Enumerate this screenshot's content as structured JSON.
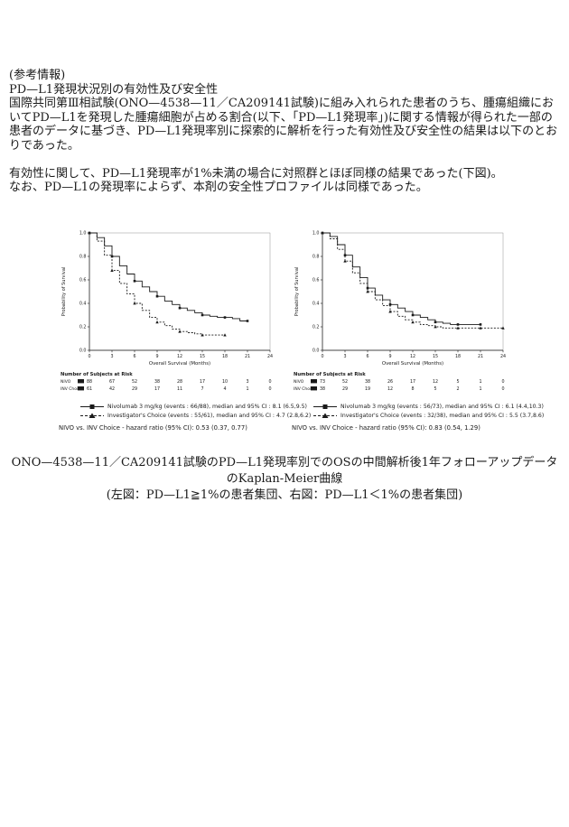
{
  "doc": {
    "ref_heading": "(参考情報)",
    "section_heading": "PD—L1発現状況別の有効性及び安全性",
    "paragraph1": "国際共同第Ⅲ相試験(ONO—4538—11／CA209141試験)に組み入れられた患者のうち、腫瘍組織においてPD—L1を発現した腫瘍細胞が占める割合(以下、「PD—L1発現率」)に関する情報が得られた一部の患者のデータに基づき、PD—L1発現率別に探索的に解析を行った有効性及び安全性の結果は以下のとおりであった。",
    "paragraph2": "有効性に関して、PD—L1発現率が1%未満の場合に対照群とほぼ同様の結果であった(下図)。",
    "paragraph3": "なお、PD—L1の発現率によらず、本剤の安全性プロファイルは同様であった。",
    "caption_line1": "ONO—4538—11／CA209141試験のPD—L1発現率別でのOSの中間解析後1年フォローアップデータのKaplan-Meier曲線",
    "caption_line2": "(左図：PD—L1≧1%の患者集団、右図：PD—L1＜1%の患者集団)"
  },
  "colors": {
    "ink": "#1a1a1a",
    "frame": "#777777"
  },
  "chart_data": [
    {
      "type": "line",
      "subtype": "kaplan-meier",
      "title": "PD-L1 >= 1%",
      "xlabel": "Overall Survival (Months)",
      "ylabel": "Probability of Survival",
      "xlim": [
        0,
        24
      ],
      "ylim": [
        0,
        1
      ],
      "xticks": [
        0,
        3,
        6,
        9,
        12,
        15,
        18,
        21,
        24
      ],
      "yticks": [
        0.0,
        0.2,
        0.4,
        0.6,
        0.8,
        1.0
      ],
      "grid": false,
      "legend_position": "bottom",
      "series": [
        {
          "name": "Nivolumab 3 mg/kg",
          "style": "solid",
          "marker": "square",
          "x": [
            0,
            1,
            2,
            3,
            4,
            5,
            6,
            7,
            8,
            9,
            10,
            11,
            12,
            13,
            14,
            15,
            16,
            17,
            18,
            19,
            20,
            21
          ],
          "y": [
            1.0,
            0.96,
            0.89,
            0.8,
            0.72,
            0.65,
            0.59,
            0.54,
            0.5,
            0.46,
            0.42,
            0.39,
            0.36,
            0.34,
            0.32,
            0.3,
            0.29,
            0.28,
            0.28,
            0.27,
            0.25,
            0.25
          ]
        },
        {
          "name": "Investigator's Choice",
          "style": "dashed",
          "marker": "triangle",
          "x": [
            0,
            1,
            2,
            3,
            4,
            5,
            6,
            7,
            8,
            9,
            10,
            11,
            12,
            13,
            14,
            15,
            16,
            17,
            18
          ],
          "y": [
            1.0,
            0.93,
            0.81,
            0.68,
            0.57,
            0.48,
            0.4,
            0.34,
            0.28,
            0.24,
            0.21,
            0.18,
            0.16,
            0.15,
            0.14,
            0.13,
            0.13,
            0.13,
            0.13
          ]
        }
      ],
      "at_risk": {
        "title": "Number of Subjects at Risk",
        "rows": [
          {
            "label": "NIVO",
            "values": [
              88,
              67,
              52,
              38,
              28,
              17,
              10,
              3,
              0
            ]
          },
          {
            "label": "INV Choice",
            "values": [
              61,
              42,
              29,
              17,
              11,
              7,
              4,
              1,
              0
            ]
          }
        ]
      },
      "legend": [
        "Nivolumab 3 mg/kg (events : 66/88), median and 95% CI : 8.1 (6.5,9.5)",
        "Investigator's Choice (events : 55/61), median and 95% CI : 4.7 (2.8,6.2)"
      ],
      "hazard_text": "NIVO vs. INV Choice - hazard ratio (95% CI): 0.53 (0.37, 0.77)"
    },
    {
      "type": "line",
      "subtype": "kaplan-meier",
      "title": "PD-L1 < 1%",
      "xlabel": "Overall Survival (Months)",
      "ylabel": "Probability of Survival",
      "xlim": [
        0,
        24
      ],
      "ylim": [
        0,
        1
      ],
      "xticks": [
        0,
        3,
        6,
        9,
        12,
        15,
        18,
        21,
        24
      ],
      "yticks": [
        0.0,
        0.2,
        0.4,
        0.6,
        0.8,
        1.0
      ],
      "grid": false,
      "legend_position": "bottom",
      "series": [
        {
          "name": "Nivolumab 3 mg/kg",
          "style": "solid",
          "marker": "square",
          "x": [
            0,
            1,
            2,
            3,
            4,
            5,
            6,
            7,
            8,
            9,
            10,
            11,
            12,
            13,
            14,
            15,
            16,
            17,
            18,
            19,
            20,
            21
          ],
          "y": [
            1.0,
            0.97,
            0.9,
            0.81,
            0.71,
            0.62,
            0.53,
            0.47,
            0.43,
            0.39,
            0.36,
            0.33,
            0.3,
            0.28,
            0.26,
            0.24,
            0.23,
            0.22,
            0.22,
            0.22,
            0.22,
            0.22
          ]
        },
        {
          "name": "Investigator's Choice",
          "style": "dashed",
          "marker": "triangle",
          "x": [
            0,
            1,
            2,
            3,
            4,
            5,
            6,
            7,
            8,
            9,
            10,
            11,
            12,
            13,
            14,
            15,
            16,
            17,
            18,
            19,
            20,
            21,
            22,
            23,
            24
          ],
          "y": [
            1.0,
            0.95,
            0.86,
            0.76,
            0.66,
            0.57,
            0.5,
            0.43,
            0.38,
            0.33,
            0.29,
            0.26,
            0.24,
            0.22,
            0.21,
            0.2,
            0.19,
            0.19,
            0.19,
            0.19,
            0.19,
            0.19,
            0.19,
            0.19,
            0.19
          ]
        }
      ],
      "at_risk": {
        "title": "Number of Subjects at Risk",
        "rows": [
          {
            "label": "NIVO",
            "values": [
              73,
              52,
              38,
              26,
              17,
              12,
              5,
              1,
              0
            ]
          },
          {
            "label": "INV Choice",
            "values": [
              38,
              29,
              19,
              12,
              8,
              5,
              2,
              1,
              0
            ]
          }
        ]
      },
      "legend": [
        "Nivolumab 3 mg/kg (events : 56/73), median and 95% CI : 6.1 (4.4,10.3)",
        "Investigator's Choice (events : 32/38), median and 95% CI : 5.5 (3.7,8.6)"
      ],
      "hazard_text": "NIVO vs. INV Choice - hazard ratio (95% CI): 0.83 (0.54, 1.29)"
    }
  ]
}
